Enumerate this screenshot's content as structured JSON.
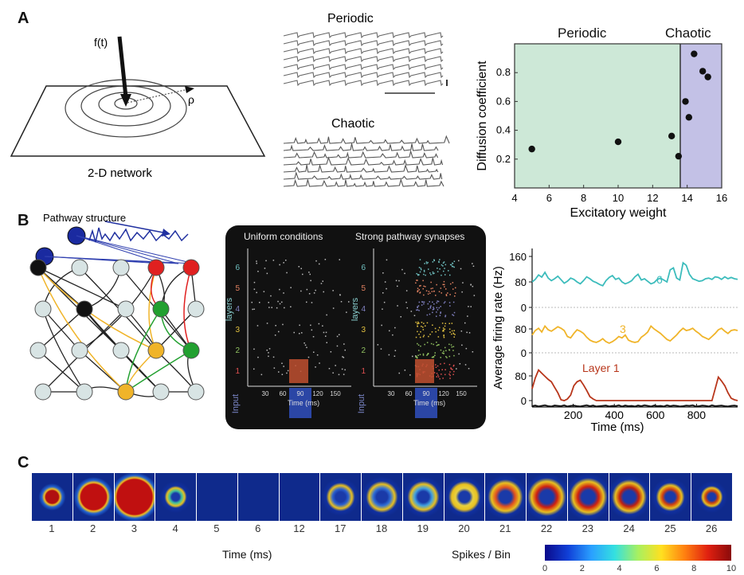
{
  "panels": {
    "a": {
      "letter": "A",
      "schematic": {
        "input_label": "f(t)",
        "radius_label": "ρ",
        "caption": "2-D network"
      },
      "traces": {
        "periodic_title": "Periodic",
        "chaotic_title": "Chaotic"
      },
      "scatter_region_periodic": "Periodic",
      "scatter_region_chaotic": "Chaotic",
      "colors": {
        "periodic_bg": "#cde8d7",
        "chaotic_bg": "#c3c1e6"
      }
    },
    "b": {
      "letter": "B",
      "network": {
        "title": "Pathway structure"
      },
      "raster": {
        "left_title": "Uniform conditions",
        "right_title": "Strong pathway synapses",
        "ylabel": "layers",
        "xlabel": "Time (ms)",
        "input_label": "Input",
        "layer_ticks": [
          "1",
          "2",
          "3",
          "4",
          "5",
          "6"
        ],
        "time_ticks": [
          "30",
          "60",
          "90",
          "120",
          "150"
        ]
      },
      "rates": {
        "label_6": "6",
        "label_3": "3",
        "label_1": "Layer 1"
      }
    },
    "c": {
      "letter": "C",
      "frame_labels": [
        "1",
        "2",
        "3",
        "4",
        "5",
        "6",
        "12",
        "17",
        "18",
        "19",
        "20",
        "21",
        "22",
        "23",
        "24",
        "25",
        "26"
      ],
      "xlabel": "Time (ms)",
      "colorbar_label": "Spikes / Bin",
      "colorbar_ticks": [
        "0",
        "2",
        "4",
        "6",
        "8",
        "10"
      ]
    }
  },
  "chart_data": [
    {
      "type": "scatter",
      "xlabel": "Excitatory weight",
      "ylabel": "Diffusion coefficient",
      "xlim": [
        4,
        16
      ],
      "ylim": [
        0,
        1.0
      ],
      "xticks": [
        4,
        6,
        8,
        10,
        12,
        14,
        16
      ],
      "yticks": [
        0.2,
        0.4,
        0.6,
        0.8
      ],
      "regions": [
        {
          "name": "Periodic",
          "x": [
            4,
            13.6
          ]
        },
        {
          "name": "Chaotic",
          "x": [
            13.6,
            16
          ]
        }
      ],
      "x": [
        5.0,
        10.0,
        13.1,
        13.5,
        13.9,
        14.1,
        14.4,
        14.9,
        15.2
      ],
      "y": [
        0.27,
        0.32,
        0.36,
        0.22,
        0.6,
        0.49,
        0.93,
        0.81,
        0.77
      ]
    },
    {
      "type": "line",
      "xlabel": "Time (ms)",
      "ylabel": "Average firing rate (Hz)",
      "xticks": [
        200,
        400,
        600,
        800
      ],
      "xlim": [
        0,
        1000
      ],
      "series": [
        {
          "name": "6",
          "color": "#3cbcbc",
          "yticks": [
            "160",
            "80",
            "0"
          ],
          "values": [
            80,
            88,
            102,
            95,
            110,
            92,
            84,
            90,
            98,
            87,
            76,
            82,
            92,
            88,
            80,
            74,
            84,
            96,
            90,
            82,
            78,
            72,
            68,
            84,
            94,
            100,
            88,
            92,
            80,
            74,
            78,
            84,
            96,
            104,
            86,
            90,
            82,
            74,
            78,
            88,
            92,
            86,
            80,
            118,
            124,
            92,
            86,
            140,
            132,
            104,
            90,
            86,
            82,
            84,
            90,
            92,
            88,
            96,
            94,
            88,
            96,
            90,
            94,
            90,
            88
          ]
        },
        {
          "name": "3",
          "color": "#f0b429",
          "yticks": [
            "80",
            "0"
          ],
          "values": [
            48,
            60,
            66,
            56,
            72,
            62,
            58,
            64,
            70,
            66,
            60,
            44,
            40,
            52,
            62,
            58,
            52,
            42,
            34,
            30,
            28,
            32,
            38,
            30,
            26,
            30,
            36,
            44,
            40,
            48,
            34,
            30,
            28,
            30,
            42,
            48,
            56,
            72,
            64,
            58,
            52,
            44,
            36,
            32,
            40,
            48,
            58,
            66,
            60,
            62,
            66,
            58,
            52,
            44,
            40,
            36,
            44,
            52,
            62,
            66,
            58,
            52,
            60,
            62,
            60
          ]
        },
        {
          "name": "Layer 1",
          "color": "#b8361b",
          "yticks": [
            "80",
            "0"
          ],
          "values": [
            30,
            58,
            78,
            70,
            62,
            54,
            48,
            34,
            20,
            2,
            0,
            4,
            14,
            38,
            48,
            52,
            40,
            26,
            10,
            4,
            0,
            0,
            0,
            0,
            0,
            0,
            0,
            0,
            0,
            0,
            0,
            0,
            0,
            0,
            0,
            0,
            0,
            0,
            0,
            0,
            0,
            0,
            0,
            0,
            0,
            0,
            0,
            0,
            0,
            0,
            0,
            0,
            0,
            0,
            0,
            0,
            0,
            30,
            60,
            50,
            38,
            20,
            6,
            2,
            0
          ]
        },
        {
          "name": "Input",
          "color": "#111111",
          "values": [
            3,
            5,
            2,
            4,
            6,
            3,
            2,
            5,
            4,
            3,
            6,
            2,
            4,
            5,
            3,
            2,
            4,
            6,
            3,
            5,
            2,
            3,
            4,
            5,
            2,
            4,
            3,
            6,
            2,
            5,
            3,
            4,
            2,
            5,
            3,
            6,
            4,
            2,
            5,
            3,
            4,
            2,
            6,
            3,
            5,
            4,
            2,
            3,
            5,
            4,
            6,
            2,
            3,
            5,
            4,
            2,
            6,
            3,
            4,
            5,
            3,
            2,
            4,
            5,
            3
          ]
        }
      ]
    }
  ]
}
